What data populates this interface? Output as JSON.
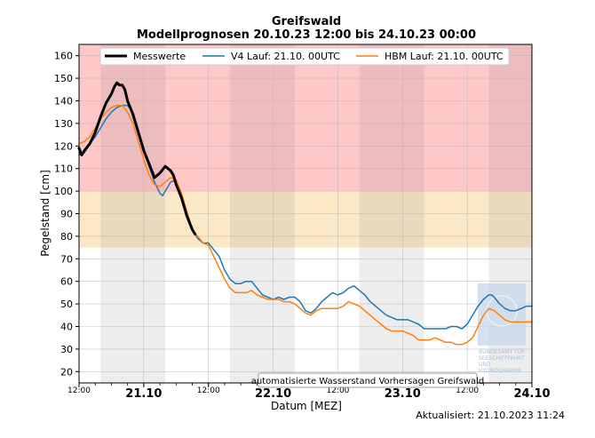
{
  "chart_data": {
    "type": "line",
    "title": "Greifswald",
    "subtitle": "Modellprognosen 20.10.23 12:00 bis 24.10.23 00:00",
    "xlabel": "Datum [MEZ]",
    "ylabel": "Pegelstand [cm]",
    "ylim": [
      15,
      165
    ],
    "xlim_hours": [
      0,
      84
    ],
    "yticks": [
      20,
      30,
      40,
      50,
      60,
      70,
      80,
      90,
      100,
      110,
      120,
      130,
      140,
      150,
      160
    ],
    "grid": true,
    "legend_position": "top",
    "bands": [
      {
        "name": "red-zone",
        "from": 100,
        "to": 165,
        "color": "#ffc8c8"
      },
      {
        "name": "yellow-zone",
        "from": 75,
        "to": 100,
        "color": "#fbe8c7"
      }
    ],
    "night_shading_hours": [
      [
        4,
        16
      ],
      [
        28,
        40
      ],
      [
        52,
        64
      ],
      [
        76,
        84
      ]
    ],
    "x_ticks": [
      {
        "hour": 0,
        "label": "12:00",
        "style": "small"
      },
      {
        "hour": 12,
        "label": "21.10",
        "style": "big"
      },
      {
        "hour": 24,
        "label": "12:00",
        "style": "small"
      },
      {
        "hour": 36,
        "label": "22.10",
        "style": "big"
      },
      {
        "hour": 48,
        "label": "12:00",
        "style": "small"
      },
      {
        "hour": 60,
        "label": "23.10",
        "style": "big"
      },
      {
        "hour": 72,
        "label": "12:00",
        "style": "small"
      },
      {
        "hour": 84,
        "label": "24.10",
        "style": "big"
      }
    ],
    "series": [
      {
        "name": "Messwerte",
        "color": "#000000",
        "width": 3,
        "points": [
          [
            0,
            119
          ],
          [
            0.5,
            116
          ],
          [
            1,
            118
          ],
          [
            2,
            121
          ],
          [
            3,
            126
          ],
          [
            4,
            133
          ],
          [
            5,
            139
          ],
          [
            6,
            143
          ],
          [
            6.5,
            146
          ],
          [
            7,
            148
          ],
          [
            7.5,
            147
          ],
          [
            8,
            147
          ],
          [
            8.5,
            145
          ],
          [
            9,
            140
          ],
          [
            10,
            134
          ],
          [
            11,
            126
          ],
          [
            12,
            118
          ],
          [
            13,
            112
          ],
          [
            14,
            106
          ],
          [
            15,
            108
          ],
          [
            16,
            111
          ],
          [
            17,
            109
          ],
          [
            17.5,
            107
          ],
          [
            18,
            103
          ],
          [
            19,
            97
          ],
          [
            20,
            89
          ],
          [
            21,
            83
          ],
          [
            21.5,
            81
          ]
        ]
      },
      {
        "name": "V4 Lauf: 21.10. 00UTC",
        "color": "#1f77b4",
        "width": 1.5,
        "points": [
          [
            0,
            116
          ],
          [
            1,
            117
          ],
          [
            2,
            121
          ],
          [
            3,
            124
          ],
          [
            4,
            128
          ],
          [
            5,
            132
          ],
          [
            6,
            135
          ],
          [
            7,
            137
          ],
          [
            8,
            138
          ],
          [
            9,
            138
          ],
          [
            10,
            135
          ],
          [
            11,
            127
          ],
          [
            12,
            119
          ],
          [
            13,
            111
          ],
          [
            14,
            104
          ],
          [
            15,
            99
          ],
          [
            15.5,
            98
          ],
          [
            16,
            100
          ],
          [
            17,
            104
          ],
          [
            18,
            105
          ],
          [
            19,
            98
          ],
          [
            20,
            91
          ],
          [
            21,
            83
          ],
          [
            22,
            79
          ],
          [
            23,
            77
          ],
          [
            24,
            77
          ],
          [
            25,
            74
          ],
          [
            26,
            71
          ],
          [
            27,
            65
          ],
          [
            28,
            61
          ],
          [
            29,
            59
          ],
          [
            30,
            59
          ],
          [
            31,
            60
          ],
          [
            32,
            60
          ],
          [
            33,
            57
          ],
          [
            34,
            54
          ],
          [
            35,
            53
          ],
          [
            36,
            52
          ],
          [
            37,
            53
          ],
          [
            38,
            52
          ],
          [
            39,
            53
          ],
          [
            40,
            53
          ],
          [
            41,
            51
          ],
          [
            42,
            47
          ],
          [
            43,
            46
          ],
          [
            44,
            48
          ],
          [
            45,
            51
          ],
          [
            46,
            53
          ],
          [
            47,
            55
          ],
          [
            48,
            54
          ],
          [
            49,
            55
          ],
          [
            50,
            57
          ],
          [
            51,
            58
          ],
          [
            52,
            56
          ],
          [
            53,
            54
          ],
          [
            54,
            51
          ],
          [
            55,
            49
          ],
          [
            56,
            47
          ],
          [
            57,
            45
          ],
          [
            58,
            44
          ],
          [
            59,
            43
          ],
          [
            60,
            43
          ],
          [
            61,
            43
          ],
          [
            62,
            42
          ],
          [
            63,
            41
          ],
          [
            64,
            39
          ],
          [
            65,
            39
          ],
          [
            66,
            39
          ],
          [
            67,
            39
          ],
          [
            68,
            39
          ],
          [
            69,
            40
          ],
          [
            70,
            40
          ],
          [
            71,
            39
          ],
          [
            72,
            41
          ],
          [
            73,
            45
          ],
          [
            74,
            49
          ],
          [
            75,
            52
          ],
          [
            76,
            54
          ],
          [
            76.5,
            54
          ],
          [
            77,
            53
          ],
          [
            78,
            50
          ],
          [
            79,
            48
          ],
          [
            80,
            47
          ],
          [
            81,
            47
          ],
          [
            82,
            48
          ],
          [
            83,
            49
          ],
          [
            84,
            49
          ]
        ]
      },
      {
        "name": "HBM Lauf: 21.10. 00UTC",
        "color": "#ff7f0e",
        "width": 1.5,
        "points": [
          [
            0,
            121
          ],
          [
            1,
            122
          ],
          [
            2,
            124
          ],
          [
            3,
            128
          ],
          [
            4,
            132
          ],
          [
            5,
            135
          ],
          [
            6,
            137
          ],
          [
            7,
            138
          ],
          [
            8,
            138
          ],
          [
            9,
            135
          ],
          [
            10,
            130
          ],
          [
            11,
            122
          ],
          [
            12,
            114
          ],
          [
            13,
            107
          ],
          [
            14,
            103
          ],
          [
            15,
            102
          ],
          [
            16,
            104
          ],
          [
            17,
            106
          ],
          [
            18,
            105
          ],
          [
            19,
            99
          ],
          [
            20,
            91
          ],
          [
            21,
            83
          ],
          [
            22,
            80
          ],
          [
            23,
            77
          ],
          [
            24,
            76
          ],
          [
            25,
            71
          ],
          [
            26,
            66
          ],
          [
            27,
            61
          ],
          [
            28,
            57
          ],
          [
            29,
            55
          ],
          [
            30,
            55
          ],
          [
            31,
            55
          ],
          [
            32,
            56
          ],
          [
            33,
            54
          ],
          [
            34,
            53
          ],
          [
            35,
            52
          ],
          [
            36,
            52
          ],
          [
            37,
            52
          ],
          [
            38,
            51
          ],
          [
            39,
            51
          ],
          [
            40,
            50
          ],
          [
            41,
            48
          ],
          [
            42,
            46
          ],
          [
            43,
            45
          ],
          [
            44,
            47
          ],
          [
            45,
            48
          ],
          [
            46,
            48
          ],
          [
            47,
            48
          ],
          [
            48,
            48
          ],
          [
            49,
            49
          ],
          [
            50,
            51
          ],
          [
            51,
            50
          ],
          [
            52,
            49
          ],
          [
            53,
            47
          ],
          [
            54,
            45
          ],
          [
            55,
            43
          ],
          [
            56,
            41
          ],
          [
            57,
            39
          ],
          [
            58,
            38
          ],
          [
            59,
            38
          ],
          [
            60,
            38
          ],
          [
            61,
            37
          ],
          [
            62,
            36
          ],
          [
            63,
            34
          ],
          [
            64,
            34
          ],
          [
            65,
            34
          ],
          [
            66,
            35
          ],
          [
            67,
            34
          ],
          [
            68,
            33
          ],
          [
            69,
            33
          ],
          [
            70,
            32
          ],
          [
            71,
            32
          ],
          [
            72,
            33
          ],
          [
            73,
            35
          ],
          [
            74,
            40
          ],
          [
            75,
            45
          ],
          [
            76,
            48
          ],
          [
            77,
            47
          ],
          [
            78,
            45
          ],
          [
            79,
            43
          ],
          [
            80,
            42
          ],
          [
            81,
            42
          ],
          [
            82,
            42
          ],
          [
            83,
            42
          ],
          [
            84,
            42
          ]
        ]
      }
    ]
  },
  "note_box": "automatisierte Wasserstand Vorhersagen Greifswald",
  "updated": "Aktualisiert: 21.10.2023 11:24",
  "logo_text": [
    "BUNDESAMT FÜR",
    "SEESCHIFFFAHRT",
    "UND",
    "HYDROGRAPHIE"
  ]
}
